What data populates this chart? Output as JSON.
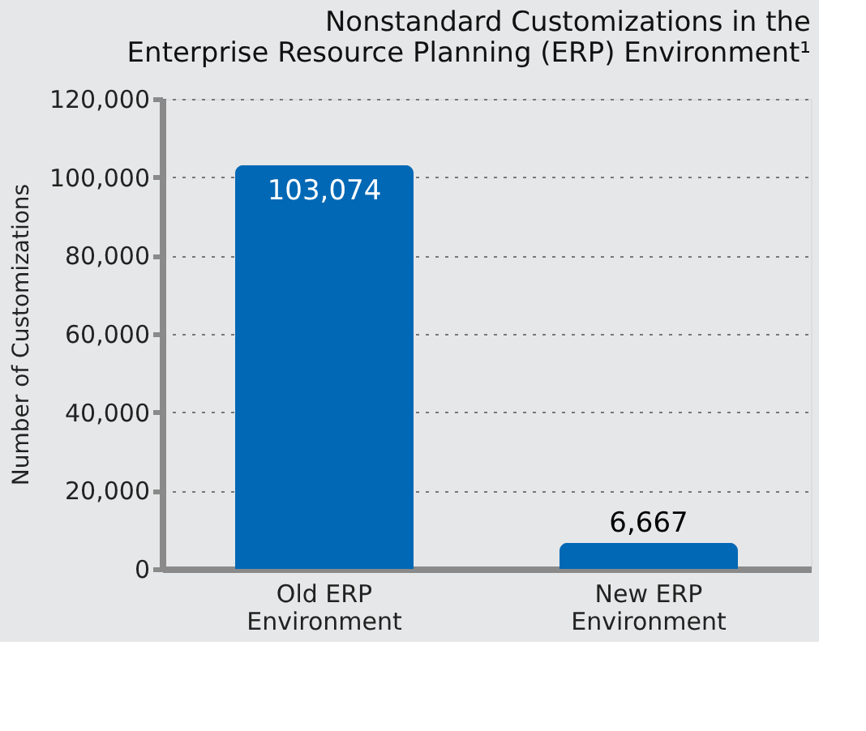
{
  "chart_data": {
    "type": "bar",
    "title": [
      "Nonstandard Customizations in the",
      "Enterprise Resource Planning (ERP) Environment¹"
    ],
    "ylabel": "Number of Customizations",
    "categories": [
      "Old ERP\nEnvironment",
      "New ERP\nEnvironment"
    ],
    "values": [
      103074,
      6667
    ],
    "color": "#0068b5",
    "ylim": [
      0,
      120000
    ],
    "yticks": [
      {
        "value": 0,
        "label": "0"
      },
      {
        "value": 20000,
        "label": "20,000"
      },
      {
        "value": 40000,
        "label": "40,000"
      },
      {
        "value": 60000,
        "label": "60,000"
      },
      {
        "value": 80000,
        "label": "80,000"
      },
      {
        "value": 100000,
        "label": "100,000"
      },
      {
        "value": 120000,
        "label": "120,000"
      }
    ],
    "grid": "y",
    "value_labels": [
      "103,074",
      "6,667"
    ]
  }
}
